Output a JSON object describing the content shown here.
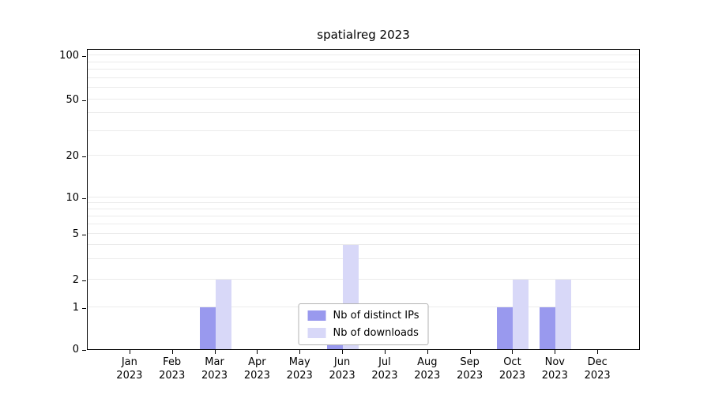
{
  "title": "spatialreg 2023",
  "colors": {
    "distinct_ips_bar": "#9999ee",
    "downloads_bar": "#d8d8f8",
    "gridline": "#ebebeb",
    "axis": "#000000",
    "legend_border": "#b3b3b3"
  },
  "chart_data": {
    "type": "bar",
    "title": "spatialreg 2023",
    "months": [
      "Jan",
      "Feb",
      "Mar",
      "Apr",
      "May",
      "Jun",
      "Jul",
      "Aug",
      "Sep",
      "Oct",
      "Nov",
      "Dec"
    ],
    "year_label": "2023",
    "series": [
      {
        "name": "Nb of distinct IPs",
        "color": "#9999ee",
        "values": [
          0,
          0,
          1,
          0,
          0,
          1,
          0,
          0,
          0,
          1,
          1,
          0
        ]
      },
      {
        "name": "Nb of downloads",
        "color": "#d8d8f8",
        "values": [
          0,
          0,
          2,
          0,
          0,
          4,
          0,
          0,
          0,
          2,
          2,
          0
        ]
      }
    ],
    "yticks": [
      0,
      1,
      2,
      5,
      10,
      20,
      50,
      100
    ],
    "yscale": "log-like",
    "ylim": [
      0,
      100
    ],
    "xlabel": "",
    "ylabel": "",
    "grid": true,
    "legend_position": "bottom-center"
  }
}
